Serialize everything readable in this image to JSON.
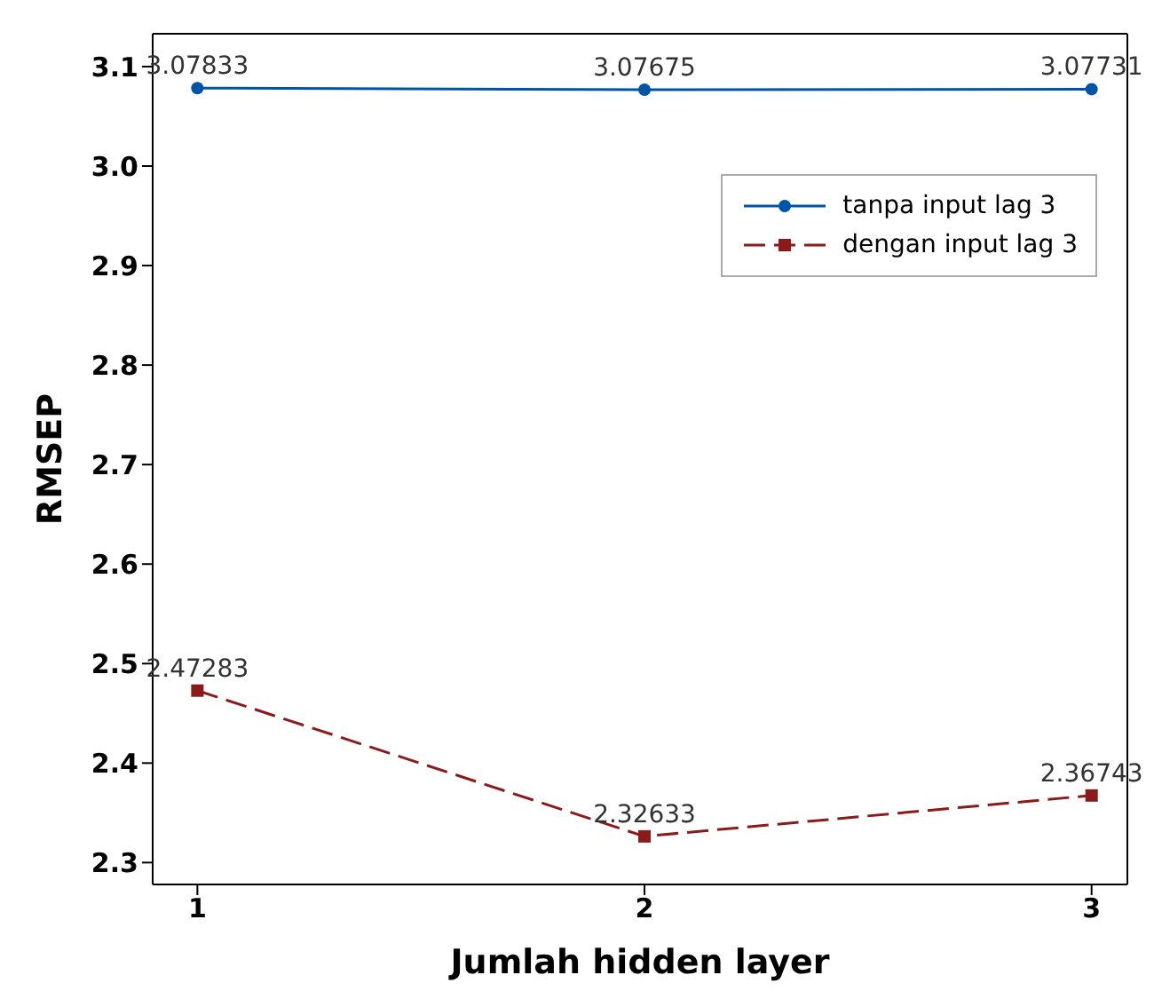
{
  "chart_data": {
    "type": "line",
    "xlabel": "Jumlah hidden layer",
    "ylabel": "RMSEP",
    "x": [
      1,
      2,
      3
    ],
    "series": [
      {
        "name": "tanpa input lag 3",
        "color": "#0054a6",
        "values": [
          3.07833,
          3.07675,
          3.07731
        ],
        "marker": "circle",
        "line_style": "solid"
      },
      {
        "name": "dengan input lag 3",
        "color": "#8b1a1a",
        "values": [
          2.47283,
          2.32633,
          2.36743
        ],
        "marker": "square",
        "line_style": "dashed"
      }
    ],
    "xlim": [
      0.9,
      3.08
    ],
    "xticks": [
      1,
      2,
      3
    ],
    "ylim": [
      2.278,
      3.133
    ],
    "yticks": [
      2.3,
      2.4,
      2.5,
      2.6,
      2.7,
      2.8,
      2.9,
      {
        "value": 3.0,
        "label": "3.0"
      },
      3.1
    ],
    "data_labels": true,
    "grid": false,
    "legend": "top right"
  }
}
